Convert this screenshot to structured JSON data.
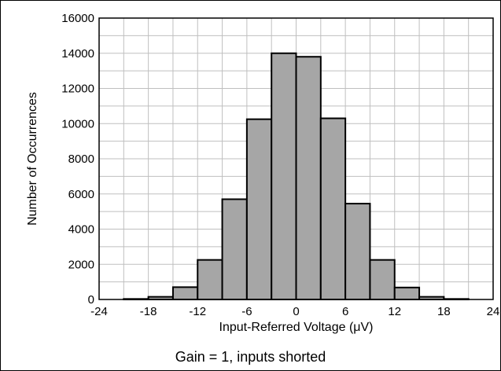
{
  "caption": "Gain = 1, inputs shorted",
  "chart_data": {
    "type": "bar",
    "title": "",
    "xlabel": "Input-Referred Voltage (μV)",
    "ylabel": "Number of Occurrences",
    "xlim": [
      -24,
      24
    ],
    "ylim": [
      0,
      16000
    ],
    "grid": true,
    "x_ticks": [
      "-24",
      "-18",
      "-12",
      "-6",
      "0",
      "6",
      "12",
      "18",
      "24"
    ],
    "y_ticks": [
      "0",
      "2000",
      "4000",
      "6000",
      "8000",
      "10000",
      "12000",
      "14000",
      "16000"
    ],
    "bin_width": 3,
    "bins": [
      {
        "x_start": -24,
        "x_end": -21,
        "value": 0
      },
      {
        "x_start": -21,
        "x_end": -18,
        "value": 30
      },
      {
        "x_start": -18,
        "x_end": -15,
        "value": 150
      },
      {
        "x_start": -15,
        "x_end": -12,
        "value": 700
      },
      {
        "x_start": -12,
        "x_end": -9,
        "value": 2250
      },
      {
        "x_start": -9,
        "x_end": -6,
        "value": 5700
      },
      {
        "x_start": -6,
        "x_end": -3,
        "value": 10250
      },
      {
        "x_start": -3,
        "x_end": 0,
        "value": 14000
      },
      {
        "x_start": 0,
        "x_end": 3,
        "value": 13800
      },
      {
        "x_start": 3,
        "x_end": 6,
        "value": 10300
      },
      {
        "x_start": 6,
        "x_end": 9,
        "value": 5450
      },
      {
        "x_start": 9,
        "x_end": 12,
        "value": 2250
      },
      {
        "x_start": 12,
        "x_end": 15,
        "value": 680
      },
      {
        "x_start": 15,
        "x_end": 18,
        "value": 150
      },
      {
        "x_start": 18,
        "x_end": 21,
        "value": 30
      },
      {
        "x_start": 21,
        "x_end": 24,
        "value": 0
      }
    ],
    "bar_color": "#a6a6a6",
    "bar_edge_color": "#000000",
    "grid_color": "#bfbfbf"
  }
}
